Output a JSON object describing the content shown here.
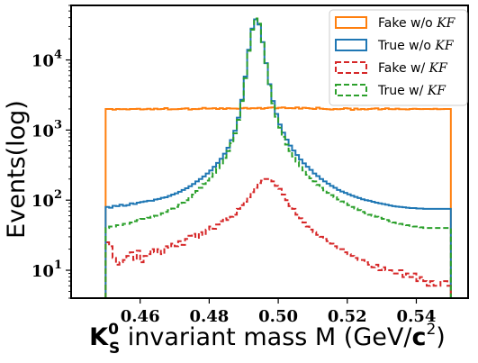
{
  "chart_data": {
    "type": "histogram-step",
    "title": "",
    "xlabel_parts": {
      "k": "K",
      "sup": "0",
      "sub": "S",
      "mid": " invariant mass M (GeV/",
      "c": "c",
      "c_sup": "2",
      "end": ")"
    },
    "ylabel": "Events(log)",
    "xlim": [
      0.44,
      0.555
    ],
    "ylim": [
      4,
      60000
    ],
    "yscale": "log",
    "x_ticks": [
      0.46,
      0.48,
      0.5,
      0.52,
      0.54
    ],
    "x_tick_labels": [
      "0.46",
      "0.48",
      "0.50",
      "0.52",
      "0.54"
    ],
    "y_ticks": [
      10,
      100,
      1000,
      10000
    ],
    "y_tick_labels": [
      {
        "base": "10",
        "exp": "1"
      },
      {
        "base": "10",
        "exp": "2"
      },
      {
        "base": "10",
        "exp": "3"
      },
      {
        "base": "10",
        "exp": "4"
      }
    ],
    "grid": false,
    "legend_position": "top-right",
    "bins": {
      "start": 0.45,
      "end": 0.55,
      "count": 100
    },
    "series": [
      {
        "name": "Fake w/o KF",
        "label_plain": "Fake w/o ",
        "label_ital": "KF",
        "color": "#ff7f0e",
        "style": "solid",
        "values": [
          2000,
          2000,
          1950,
          2000,
          1980,
          1990,
          1970,
          2000,
          2000,
          2010,
          1970,
          1980,
          2010,
          1970,
          2020,
          1980,
          2000,
          2060,
          1970,
          1980,
          1980,
          2000,
          2020,
          2040,
          1960,
          2000,
          1990,
          2010,
          2070,
          2020,
          2030,
          2050,
          2000,
          2050,
          2000,
          2050,
          2030,
          2030,
          2010,
          2040,
          2070,
          2020,
          2050,
          2040,
          2070,
          2010,
          2060,
          2090,
          2100,
          2040,
          2080,
          2100,
          2050,
          2060,
          2040,
          2100,
          2020,
          2080,
          2060,
          2030,
          2000,
          2090,
          2020,
          2000,
          1980,
          1960,
          2000,
          1980,
          2000,
          2050,
          2030,
          1940,
          2030,
          1970,
          2000,
          1970,
          2000,
          2020,
          2040,
          1970,
          2000,
          2040,
          1990,
          1980,
          2020,
          1980,
          1980,
          1970,
          2000,
          2010,
          2000,
          1990,
          2000,
          2000,
          1990,
          2010,
          1980,
          1990,
          2000,
          2000
        ]
      },
      {
        "name": "True w/o KF",
        "label_plain": "True w/o ",
        "label_ital": "KF",
        "color": "#1f77b4",
        "style": "solid",
        "values": [
          80,
          78,
          83,
          82,
          86,
          83,
          85,
          90,
          88,
          92,
          94,
          96,
          98,
          98,
          102,
          104,
          108,
          110,
          115,
          120,
          125,
          132,
          140,
          148,
          158,
          170,
          185,
          200,
          218,
          240,
          265,
          300,
          340,
          390,
          460,
          560,
          720,
          980,
          1500,
          2700,
          5800,
          14000,
          28000,
          38000,
          32000,
          18000,
          9000,
          4500,
          2600,
          1700,
          1200,
          920,
          730,
          600,
          510,
          440,
          380,
          335,
          300,
          270,
          240,
          220,
          200,
          185,
          172,
          160,
          150,
          140,
          133,
          127,
          121,
          116,
          111,
          107,
          103,
          100,
          98,
          95,
          92,
          90,
          88,
          86,
          84,
          82,
          81,
          80,
          79,
          78,
          77,
          77,
          76,
          76,
          75,
          75,
          75,
          75,
          75,
          75,
          75,
          75
        ]
      },
      {
        "name": "Fake w/ KF",
        "label_plain": "Fake w/ ",
        "label_ital": "KF",
        "color": "#d62728",
        "style": "dashed",
        "values": [
          25,
          22,
          15,
          12,
          13,
          14,
          16,
          18,
          14,
          19,
          13,
          16,
          17,
          20,
          18,
          20,
          17,
          22,
          21,
          24,
          22,
          26,
          23,
          28,
          31,
          33,
          29,
          35,
          32,
          38,
          42,
          39,
          45,
          50,
          55,
          52,
          58,
          62,
          75,
          85,
          95,
          110,
          130,
          150,
          175,
          190,
          200,
          200,
          185,
          160,
          145,
          120,
          100,
          82,
          75,
          62,
          55,
          48,
          42,
          38,
          35,
          32,
          30,
          28,
          26,
          24,
          22,
          20,
          20,
          18,
          17,
          16,
          15,
          14,
          14,
          13,
          12,
          11,
          12,
          10,
          11,
          10,
          10,
          9,
          9,
          10,
          8,
          9,
          8,
          9,
          7,
          8,
          7,
          6,
          7,
          6,
          6,
          7,
          7,
          6
        ]
      },
      {
        "name": "True w/ KF",
        "label_plain": "True w/ ",
        "label_ital": "KF",
        "color": "#2ca02c",
        "style": "dashed",
        "values": [
          40,
          42,
          42,
          44,
          44,
          46,
          46,
          48,
          50,
          52,
          54,
          54,
          56,
          58,
          60,
          62,
          65,
          68,
          72,
          76,
          80,
          86,
          92,
          100,
          110,
          120,
          135,
          150,
          170,
          190,
          215,
          245,
          285,
          335,
          400,
          500,
          650,
          900,
          1400,
          2600,
          5500,
          13500,
          27000,
          39000,
          33000,
          18000,
          8800,
          4300,
          2400,
          1550,
          1080,
          800,
          620,
          500,
          420,
          355,
          305,
          265,
          230,
          205,
          185,
          165,
          150,
          138,
          127,
          118,
          110,
          102,
          96,
          90,
          85,
          80,
          76,
          72,
          68,
          65,
          62,
          60,
          58,
          56,
          54,
          52,
          50,
          48,
          47,
          46,
          45,
          44,
          43,
          42,
          42,
          41,
          40,
          40,
          40,
          40,
          40,
          40,
          40,
          40
        ]
      }
    ]
  }
}
